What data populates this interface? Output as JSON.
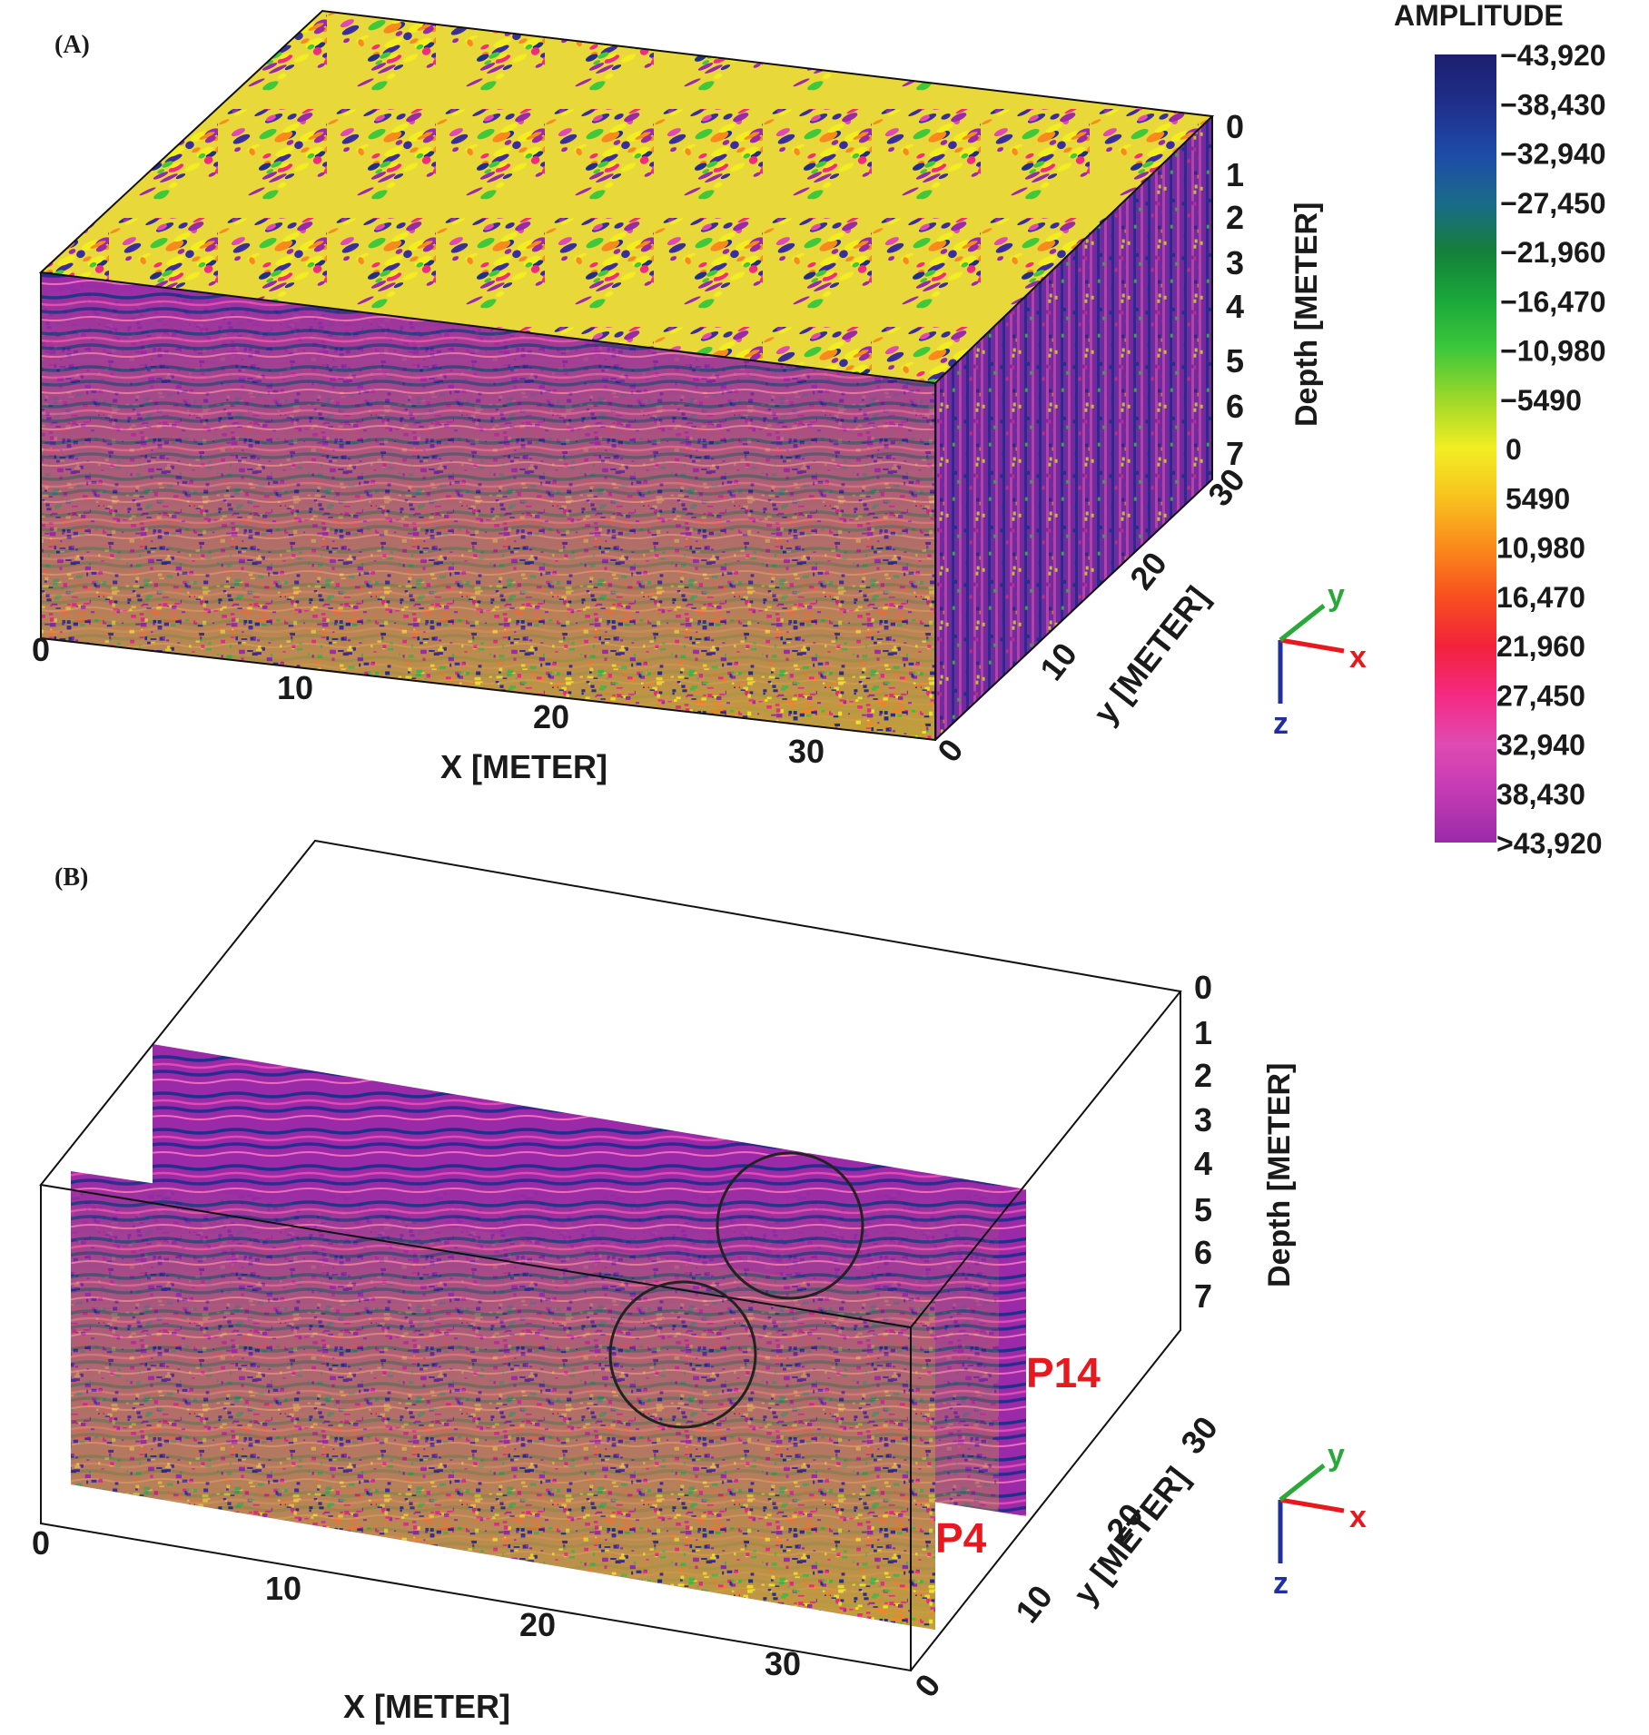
{
  "panels": [
    {
      "id": "A",
      "label": "(A)",
      "x_ticks": [
        "0",
        "10",
        "20",
        "30"
      ],
      "x_label": "X [METER]",
      "y_ticks": [
        "0",
        "10",
        "20",
        "30"
      ],
      "y_label": "y [METER]",
      "z_ticks": [
        "0",
        "1",
        "2",
        "3",
        "4",
        "5",
        "6",
        "7"
      ],
      "z_label": "Depth [METER]"
    },
    {
      "id": "B",
      "label": "(B)",
      "x_ticks": [
        "0",
        "10",
        "20",
        "30"
      ],
      "x_label": "X [METER]",
      "y_ticks": [
        "0",
        "10",
        "20",
        "30"
      ],
      "y_label": "y [METER]",
      "z_ticks": [
        "0",
        "1",
        "2",
        "3",
        "4",
        "5",
        "6",
        "7"
      ],
      "z_label": "Depth [METER]",
      "profile_labels": [
        "P14",
        "P4"
      ]
    }
  ],
  "colorbar": {
    "title": "AMPLITUDE",
    "labels": [
      "−43,920",
      "−38,430",
      "−32,940",
      "−27,450",
      "−21,960",
      "−16,470",
      "−10,980",
      "−5490",
      "0",
      "5490",
      "10,980",
      "16,470",
      "21,960",
      "27,450",
      "32,940",
      "38,430",
      ">43,920"
    ],
    "colors": [
      "#1b1f6e",
      "#1f2f8a",
      "#1d4aa8",
      "#1a6a8a",
      "#14803a",
      "#1aa83a",
      "#3ec83a",
      "#9ed82a",
      "#f2ee22",
      "#f8c21e",
      "#fa8a1c",
      "#f8501e",
      "#f2223a",
      "#f42a82",
      "#e04ab2",
      "#c23ab4",
      "#9a2aa8"
    ]
  },
  "axis_triad": {
    "labels": {
      "x": "x",
      "y": "y",
      "z": "z"
    },
    "colors": {
      "x": "#e8191e",
      "y": "#2aa83a",
      "z": "#1f2fa0"
    }
  },
  "data_colors": {
    "cube_palette": [
      "#9a2aa8",
      "#e04ab2",
      "#3a2f9a",
      "#1f2f8a",
      "#f42a82",
      "#f2ee22",
      "#3ec83a",
      "#fa8a1c"
    ],
    "section_palette": [
      "#9a2aa8",
      "#1f2f8a",
      "#e04ab2",
      "#3a2f9a",
      "#f42a82"
    ],
    "noise_palette": [
      "#f2ee22",
      "#3ec83a",
      "#f42a82",
      "#1f2f8a",
      "#9a2aa8",
      "#fa8a1c"
    ]
  }
}
